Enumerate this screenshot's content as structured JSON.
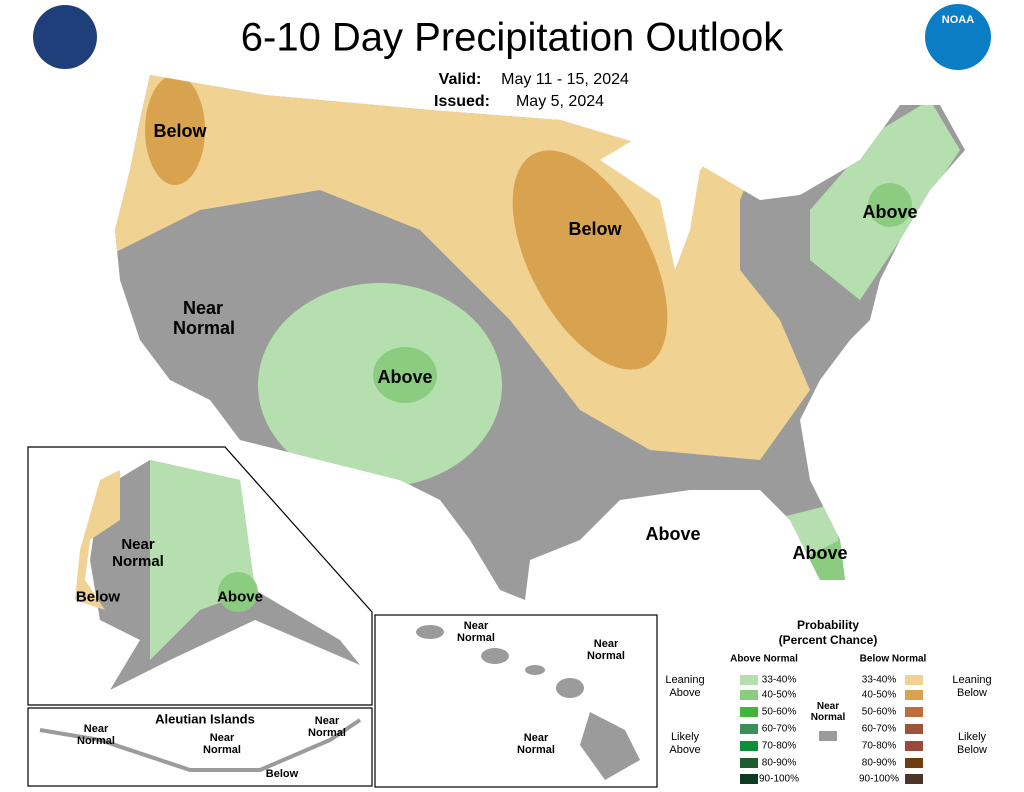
{
  "header": {
    "title": "6-10 Day Precipitation Outlook",
    "valid_label": "Valid:",
    "valid": "May 11 - 15, 2024",
    "issued_label": "Issued:",
    "issued": "May 5, 2024",
    "logo": "NOAA"
  },
  "conus_labels": [
    "Below",
    "Below",
    "Above",
    "Near Normal",
    "Above",
    "Above",
    "Above"
  ],
  "alaska_labels": [
    "Near Normal",
    "Below",
    "Above"
  ],
  "aleutian": {
    "title": "Aleutian Islands",
    "labels": [
      "Near Normal",
      "Near Normal",
      "Near Normal",
      "Below"
    ]
  },
  "hawaii_labels": [
    "Near Normal",
    "Near Normal",
    "Near Normal"
  ],
  "legend": {
    "title": "Probability",
    "subtitle": "(Percent Chance)",
    "above_heading": "Above Normal",
    "below_heading": "Below Normal",
    "near_normal": "Near Normal",
    "leaning_above": "Leaning Above",
    "likely_above": "Likely Above",
    "leaning_below": "Leaning Below",
    "likely_below": "Likely Below",
    "above_ranges": [
      "33-40%",
      "40-50%",
      "50-60%",
      "60-70%",
      "70-80%",
      "80-90%",
      "90-100%"
    ],
    "below_ranges": [
      "33-40%",
      "40-50%",
      "50-60%",
      "60-70%",
      "70-80%",
      "80-90%",
      "90-100%"
    ]
  }
}
